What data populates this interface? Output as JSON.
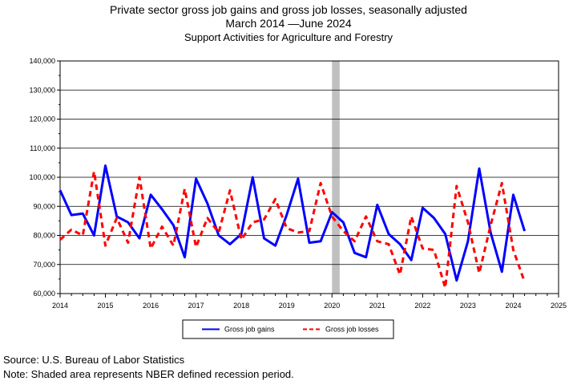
{
  "title": {
    "line1": "Private sector gross job gains and gross job losses, seasonally adjusted",
    "line2": "March 2014 —June 2024",
    "line3": "Support Activities for Agriculture and Forestry"
  },
  "footer": {
    "source": "Source: U.S. Bureau of Labor Statistics",
    "note": "Note: Shaded area represents NBER defined recession period."
  },
  "chart_data": {
    "type": "line",
    "title": "Private sector gross job gains and gross job losses, seasonally adjusted",
    "xlabel": "",
    "ylabel": "",
    "xlim": [
      2014,
      2025
    ],
    "ylim": [
      60000,
      140000
    ],
    "grid": true,
    "legend_placement": "bottom-center",
    "x_ticks": [
      2014,
      2015,
      2016,
      2017,
      2018,
      2019,
      2020,
      2021,
      2022,
      2023,
      2024,
      2025
    ],
    "x_tick_labels": [
      "2014",
      "2015",
      "2016",
      "2017",
      "2018",
      "2019",
      "2020",
      "2021",
      "2022",
      "2023",
      "2024",
      "2025"
    ],
    "y_ticks": [
      60000,
      70000,
      80000,
      90000,
      100000,
      110000,
      120000,
      130000,
      140000
    ],
    "y_tick_labels": [
      "60,000",
      "70,000",
      "80,000",
      "90,000",
      "100,000",
      "110,000",
      "120,000",
      "130,000",
      "140,000"
    ],
    "recession": {
      "start": 2020.0,
      "end": 2020.17,
      "color": "#c0c0c0"
    },
    "x": [
      2014.0,
      2014.25,
      2014.5,
      2014.75,
      2015.0,
      2015.25,
      2015.5,
      2015.75,
      2016.0,
      2016.25,
      2016.5,
      2016.75,
      2017.0,
      2017.25,
      2017.5,
      2017.75,
      2018.0,
      2018.25,
      2018.5,
      2018.75,
      2019.0,
      2019.25,
      2019.5,
      2019.75,
      2020.0,
      2020.25,
      2020.5,
      2020.75,
      2021.0,
      2021.25,
      2021.5,
      2021.75,
      2022.0,
      2022.25,
      2022.5,
      2022.75,
      2023.0,
      2023.25,
      2023.5,
      2023.75,
      2024.0,
      2024.25
    ],
    "series": [
      {
        "name": "Gross job gains",
        "color": "#0000ff",
        "style": "solid",
        "values": [
          95500,
          87000,
          87500,
          80000,
          104000,
          86500,
          84500,
          79000,
          94000,
          89000,
          83500,
          72500,
          99500,
          91000,
          80000,
          77000,
          80500,
          100000,
          79000,
          76500,
          87000,
          99500,
          77500,
          78000,
          88000,
          84500,
          74000,
          72500,
          90500,
          80500,
          77000,
          71500,
          89500,
          86000,
          80500,
          64500,
          78000,
          103000,
          81000,
          67500,
          94000,
          81500
        ]
      },
      {
        "name": "Gross job losses",
        "color": "#ff0000",
        "style": "dashed",
        "values": [
          78500,
          82000,
          80000,
          102000,
          76500,
          86000,
          77500,
          100000,
          75500,
          83000,
          76500,
          96000,
          76000,
          86000,
          81000,
          95500,
          78500,
          84500,
          85500,
          92500,
          82500,
          81000,
          81500,
          98000,
          86500,
          81500,
          78000,
          86500,
          78000,
          77000,
          66500,
          86500,
          75500,
          75000,
          62000,
          97000,
          84500,
          67000,
          83500,
          98000,
          75000,
          64000
        ]
      }
    ]
  }
}
